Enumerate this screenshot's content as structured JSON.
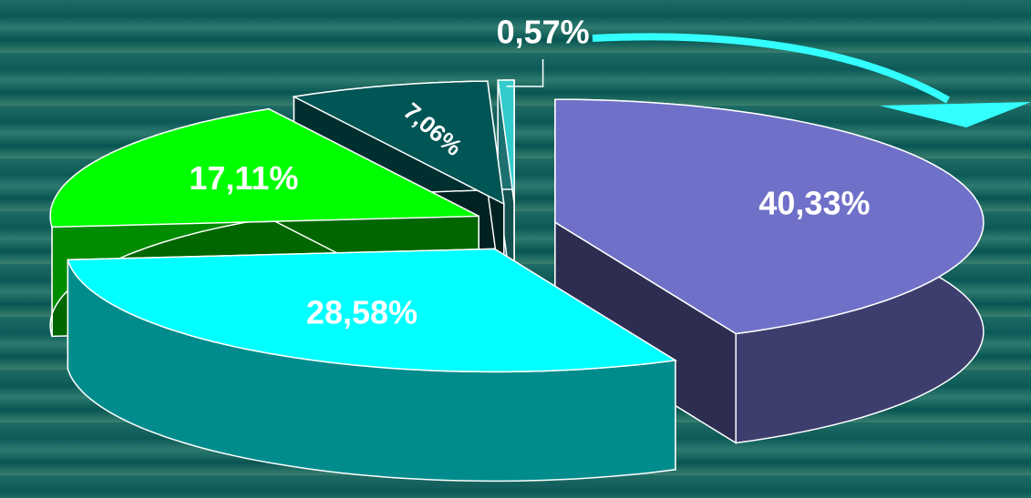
{
  "chart_data": {
    "type": "pie",
    "categories": [
      null,
      null,
      null,
      null,
      null
    ],
    "values": [
      40.33,
      28.58,
      17.11,
      7.06,
      0.57
    ],
    "value_labels": [
      "40,33%",
      "28,58%",
      "17,11%",
      "7,06%",
      "0,57%"
    ],
    "colors": [
      "#6f70c8",
      "#00ffff",
      "#00ff00",
      "#005555",
      "#33cccc"
    ]
  }
}
